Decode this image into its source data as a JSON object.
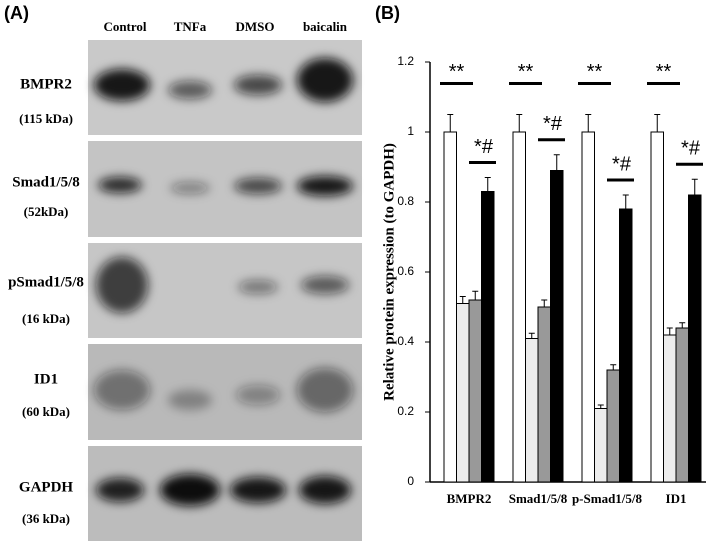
{
  "panel_a": {
    "label": "(A)",
    "lanes": [
      "Control",
      "TNFa",
      "DMSO",
      "baicalin"
    ],
    "blots": [
      {
        "name": "BMPR2",
        "size": "(115 kDa)"
      },
      {
        "name": "Smad1/5/8",
        "size": "(52kDa)"
      },
      {
        "name": "pSmad1/5/8",
        "size": "(16 kDa)"
      },
      {
        "name": "ID1",
        "size": "(60 kDa)"
      },
      {
        "name": "GAPDH",
        "size": "(36 kDa)"
      }
    ]
  },
  "chart_data": {
    "type": "bar",
    "panel_label": "(B)",
    "y_label": "Relative protein expression (to GAPDH)",
    "categories": [
      "BMPR2",
      "Smad1/5/8",
      "p-Smad1/5/8",
      "ID1"
    ],
    "series": [
      {
        "color": "#ffffff",
        "values": [
          1.0,
          1.0,
          1.0,
          1.0
        ],
        "errors": [
          0.05,
          0.05,
          0.05,
          0.05
        ]
      },
      {
        "color": "#ececec",
        "values": [
          0.51,
          0.41,
          0.21,
          0.42
        ],
        "errors": [
          0.02,
          0.015,
          0.01,
          0.02
        ]
      },
      {
        "color": "#999999",
        "values": [
          0.52,
          0.5,
          0.32,
          0.44
        ],
        "errors": [
          0.025,
          0.02,
          0.015,
          0.015
        ]
      },
      {
        "color": "#000000",
        "values": [
          0.83,
          0.89,
          0.78,
          0.82
        ],
        "errors": [
          0.04,
          0.045,
          0.04,
          0.045
        ]
      }
    ],
    "annotations": [
      [
        "**",
        "*#"
      ],
      [
        "**",
        "*#"
      ],
      [
        "**",
        "*#"
      ],
      [
        "**",
        "*#"
      ]
    ],
    "ylim": [
      0,
      1.2
    ],
    "yticks": [
      0,
      0.2,
      0.4,
      0.6,
      0.8,
      1,
      1.2
    ]
  }
}
